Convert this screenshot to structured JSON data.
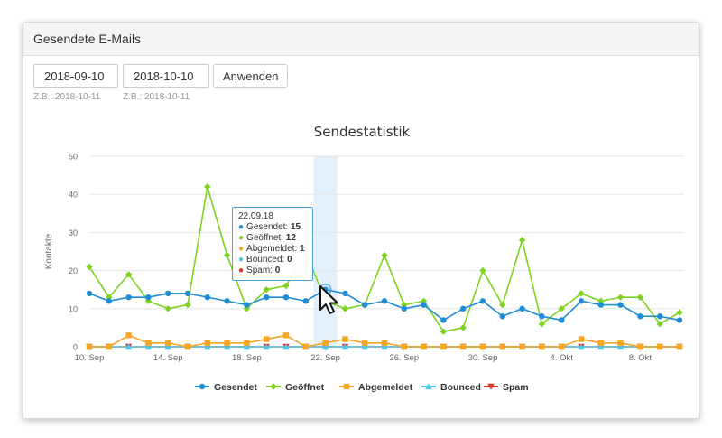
{
  "panel": {
    "title": "Gesendete E-Mails"
  },
  "filters": {
    "from_value": "2018-09-10",
    "to_value": "2018-10-10",
    "from_hint": "Z.B.: 2018-10-11",
    "to_hint": "Z.B.: 2018-10-11",
    "apply_label": "Anwenden"
  },
  "tooltip": {
    "date": "22.09.18",
    "rows": [
      {
        "label": "Gesendet:",
        "value": "15",
        "color": "#1f8dd6"
      },
      {
        "label": "Geöffnet:",
        "value": "12",
        "color": "#7ed321"
      },
      {
        "label": "Abgemeldet:",
        "value": "1",
        "color": "#f5a623"
      },
      {
        "label": "Bounced:",
        "value": "0",
        "color": "#50c8e8"
      },
      {
        "label": "Spam:",
        "value": "0",
        "color": "#e0302a"
      }
    ]
  },
  "chart_data": {
    "type": "line",
    "title": "Sendestatistik",
    "ylabel": "Kontakte",
    "xlabel": "",
    "ylim": [
      0,
      50
    ],
    "yticks": [
      0,
      10,
      20,
      30,
      40,
      50
    ],
    "grid": true,
    "legend_position": "bottom",
    "x": [
      "2018-09-10",
      "2018-09-11",
      "2018-09-12",
      "2018-09-13",
      "2018-09-14",
      "2018-09-15",
      "2018-09-16",
      "2018-09-17",
      "2018-09-18",
      "2018-09-19",
      "2018-09-20",
      "2018-09-21",
      "2018-09-22",
      "2018-09-23",
      "2018-09-24",
      "2018-09-25",
      "2018-09-26",
      "2018-09-27",
      "2018-09-28",
      "2018-09-29",
      "2018-09-30",
      "2018-10-01",
      "2018-10-02",
      "2018-10-03",
      "2018-10-04",
      "2018-10-05",
      "2018-10-06",
      "2018-10-07",
      "2018-10-08",
      "2018-10-09",
      "2018-10-10"
    ],
    "xticks": [
      {
        "index": 0,
        "label": "10. Sep"
      },
      {
        "index": 4,
        "label": "14. Sep"
      },
      {
        "index": 8,
        "label": "18. Sep"
      },
      {
        "index": 12,
        "label": "22. Sep"
      },
      {
        "index": 16,
        "label": "26. Sep"
      },
      {
        "index": 20,
        "label": "30. Sep"
      },
      {
        "index": 24,
        "label": "4. Okt"
      },
      {
        "index": 28,
        "label": "8. Okt"
      }
    ],
    "highlight_index": 12,
    "series": [
      {
        "name": "Gesendet",
        "color": "#1f8dd6",
        "marker": "circle",
        "values": [
          14,
          12,
          13,
          13,
          14,
          14,
          13,
          12,
          11,
          13,
          13,
          12,
          15,
          14,
          11,
          12,
          10,
          11,
          7,
          10,
          12,
          8,
          10,
          8,
          7,
          12,
          11,
          11,
          8,
          8,
          7
        ]
      },
      {
        "name": "Geöffnet",
        "color": "#7ed321",
        "marker": "diamond",
        "values": [
          21,
          13,
          19,
          12,
          10,
          11,
          42,
          24,
          10,
          15,
          16,
          25,
          12,
          10,
          11,
          24,
          11,
          12,
          4,
          5,
          20,
          11,
          28,
          6,
          10,
          14,
          12,
          13,
          13,
          6,
          9
        ]
      },
      {
        "name": "Abgemeldet",
        "color": "#f5a623",
        "marker": "square",
        "values": [
          0,
          0,
          3,
          1,
          1,
          0,
          1,
          1,
          1,
          2,
          3,
          0,
          1,
          2,
          1,
          1,
          0,
          0,
          0,
          0,
          0,
          0,
          0,
          0,
          0,
          2,
          1,
          1,
          0,
          0,
          0
        ]
      },
      {
        "name": "Bounced",
        "color": "#50c8e8",
        "marker": "triangle",
        "values": [
          0,
          0,
          0,
          0,
          0,
          0,
          0,
          0,
          0,
          0,
          0,
          0,
          0,
          0,
          0,
          0,
          0,
          0,
          0,
          0,
          0,
          0,
          0,
          0,
          0,
          0,
          0,
          0,
          0,
          0,
          0
        ]
      },
      {
        "name": "Spam",
        "color": "#e0302a",
        "marker": "triangle-down",
        "values": [
          0,
          0,
          0,
          0,
          0,
          0,
          0,
          0,
          0,
          0,
          0,
          0,
          0,
          0,
          0,
          0,
          0,
          0,
          0,
          0,
          0,
          0,
          0,
          0,
          0,
          0,
          0,
          0,
          0,
          0,
          0
        ]
      }
    ]
  }
}
